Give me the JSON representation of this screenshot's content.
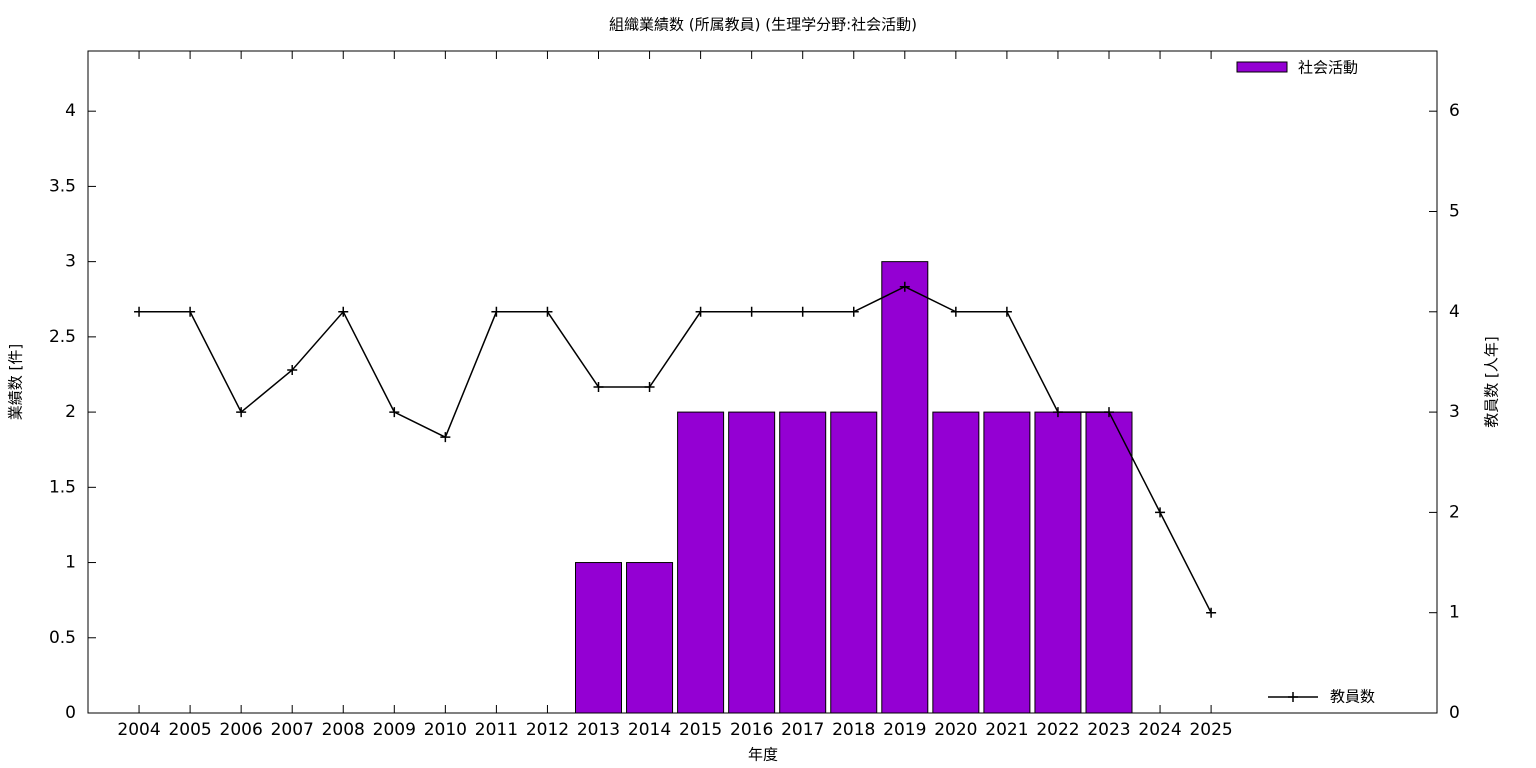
{
  "chart_data": {
    "type": "bar_line",
    "title": "組織業績数 (所属教員) (生理学分野:社会活動)",
    "x_label": "年度",
    "y_label": "業績数 [件]",
    "y2_label": "教員数 [人年]",
    "categories": [
      "2004",
      "2005",
      "2006",
      "2007",
      "2008",
      "2009",
      "2010",
      "2011",
      "2012",
      "2013",
      "2014",
      "2015",
      "2016",
      "2017",
      "2018",
      "2019",
      "2020",
      "2021",
      "2022",
      "2023",
      "2024",
      "2025"
    ],
    "series": [
      {
        "name": "社会活動",
        "type": "bar",
        "color": "#9400d3",
        "axis": "y",
        "values": [
          0,
          0,
          0,
          0,
          0,
          0,
          0,
          0,
          0,
          1,
          1,
          2,
          2,
          2,
          2,
          3,
          2,
          2,
          2,
          2,
          0,
          0
        ]
      },
      {
        "name": "教員数",
        "type": "line",
        "color": "#000000",
        "axis": "y2",
        "values": [
          4,
          4,
          3,
          3.42,
          4,
          3,
          2.75,
          4,
          4,
          3.25,
          3.25,
          4,
          4,
          4,
          4,
          4.25,
          4,
          4,
          3,
          3,
          2,
          1
        ]
      }
    ],
    "ylim": [
      0,
      4.4
    ],
    "yticks": [
      0,
      0.5,
      1,
      1.5,
      2,
      2.5,
      3,
      3.5,
      4
    ],
    "y2lim": [
      0,
      6.6
    ],
    "y2ticks": [
      0,
      1,
      2,
      3,
      4,
      5,
      6
    ],
    "legend": "top-right"
  }
}
